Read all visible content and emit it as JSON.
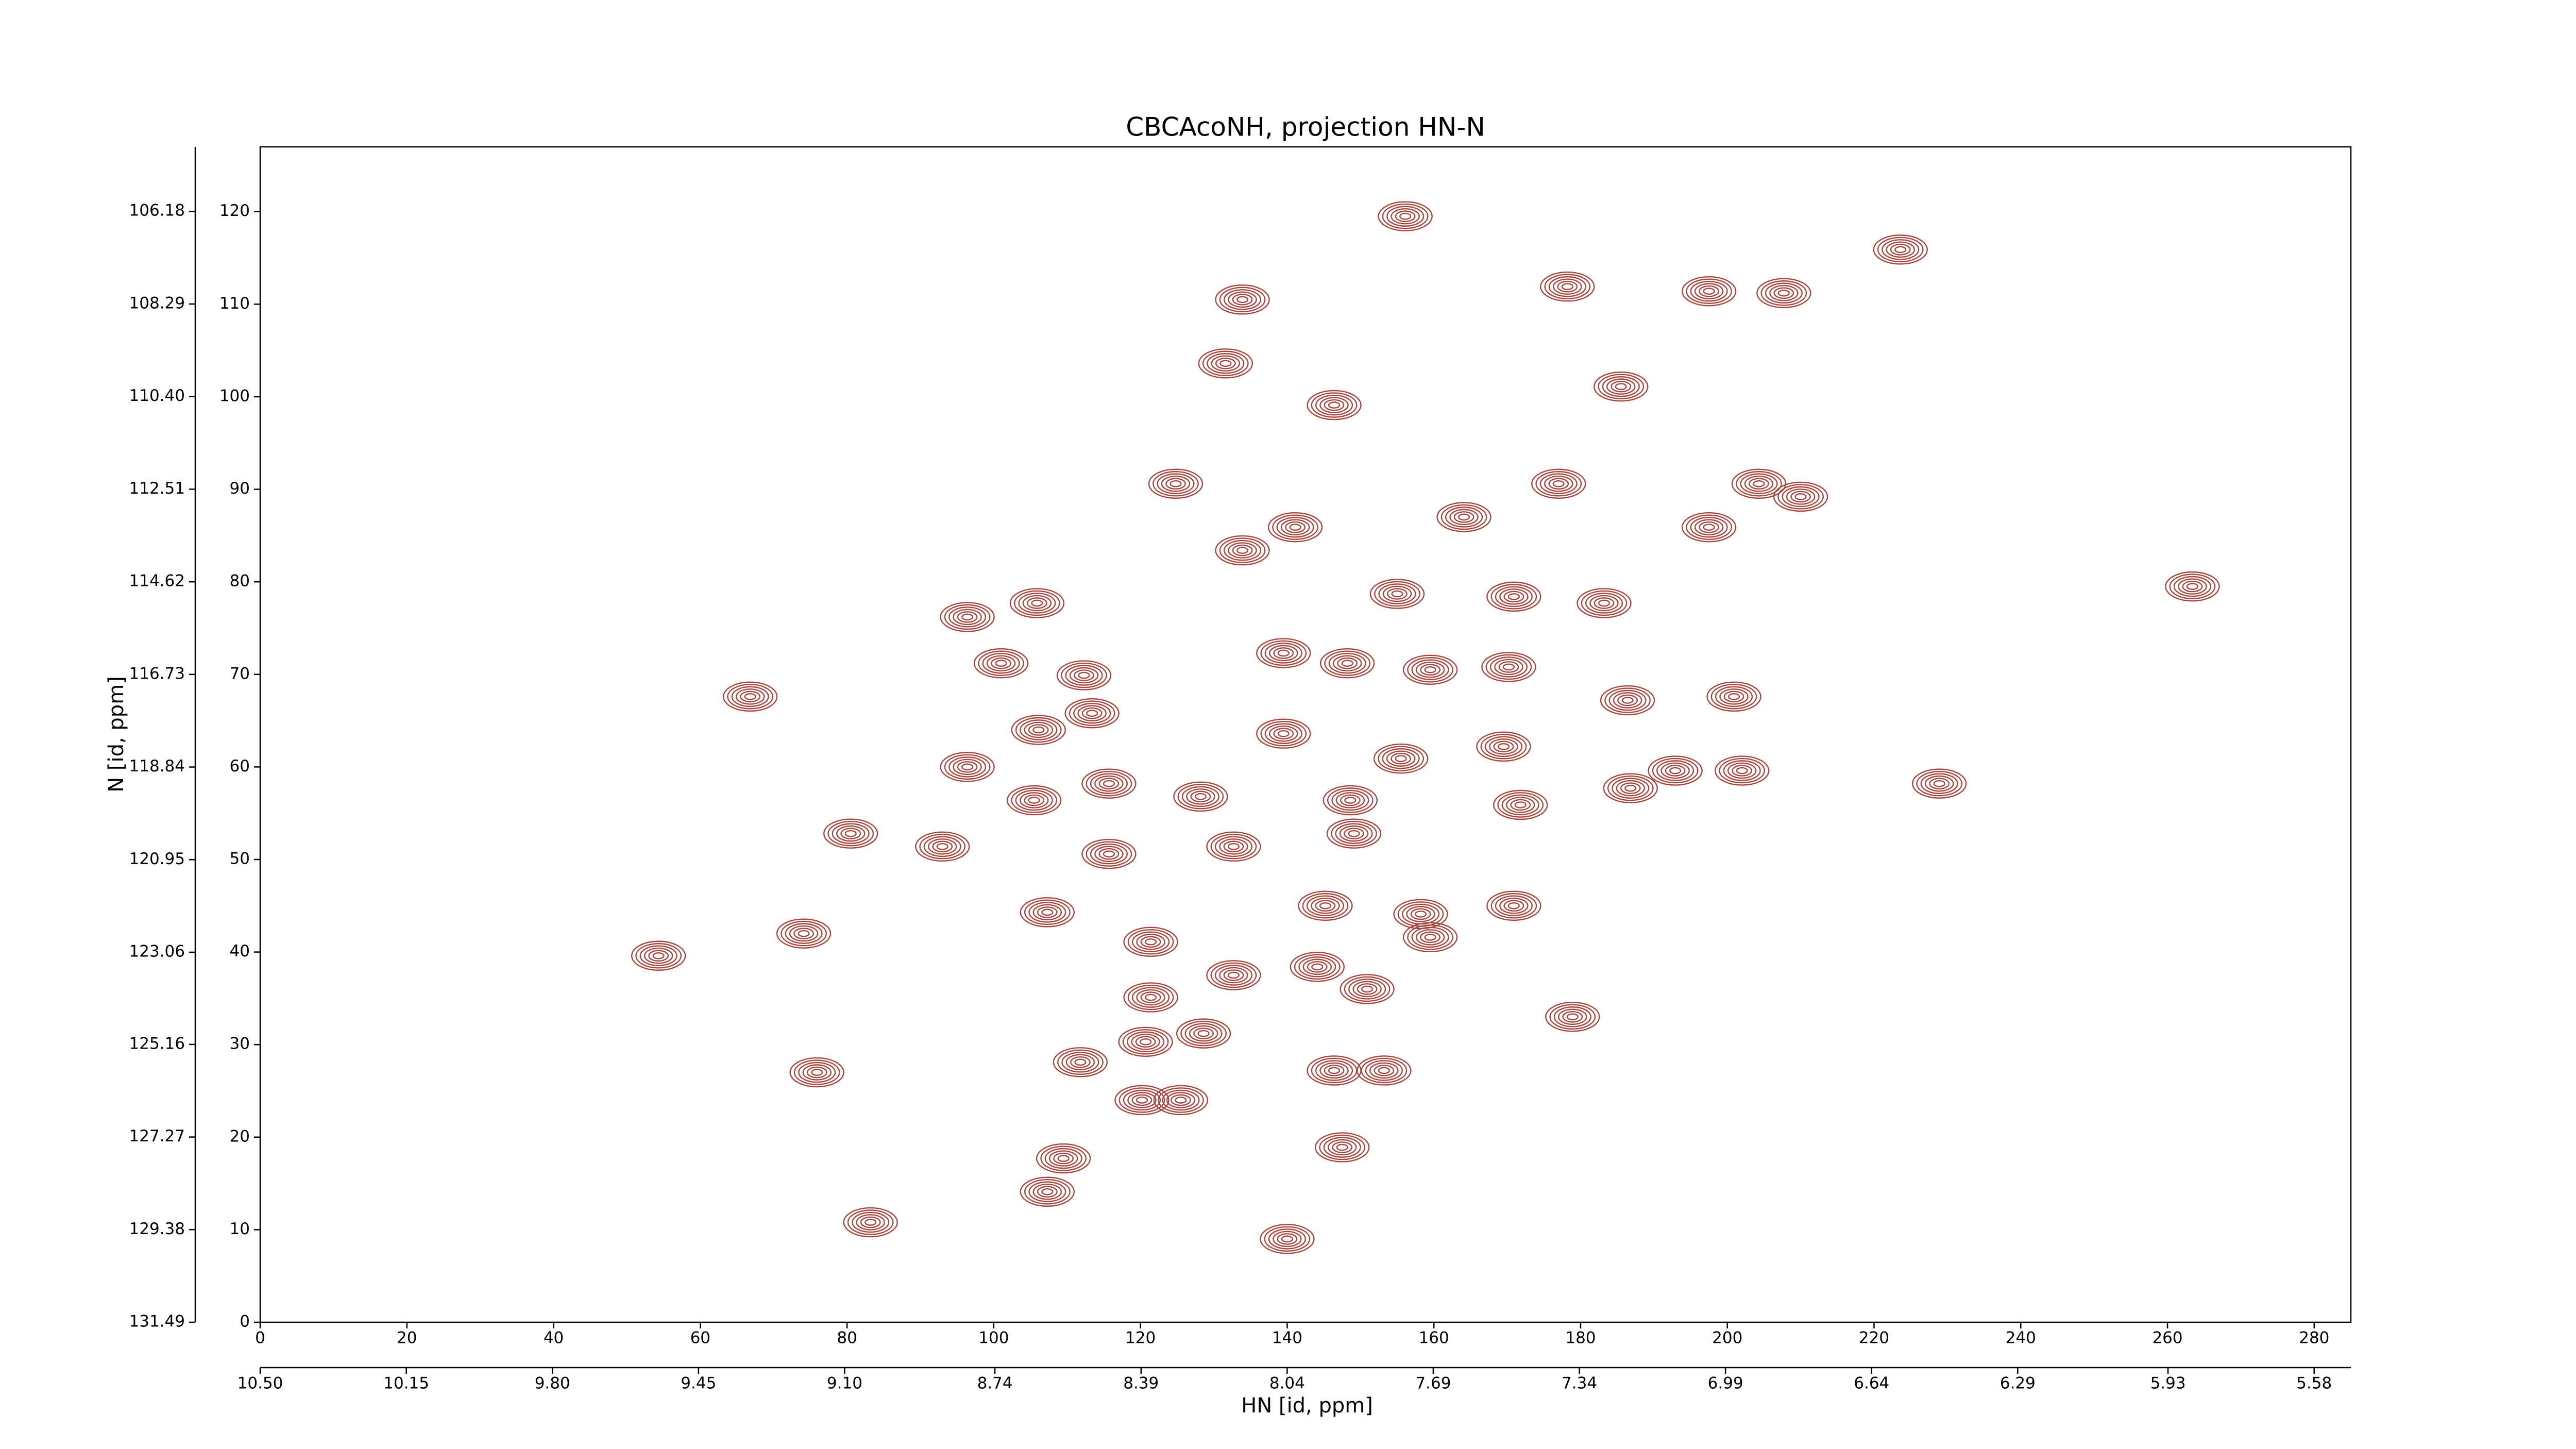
{
  "chart_data": {
    "type": "contour",
    "title": "CBCAcoNH, projection HN-N",
    "x_label": "HN [id, ppm]",
    "y_label": "N [id, ppm]",
    "color": "#a5463f",
    "xlim": [
      0,
      285
    ],
    "xticks": [
      0,
      20,
      40,
      60,
      80,
      100,
      120,
      140,
      160,
      180,
      200,
      220,
      240,
      260,
      280
    ],
    "x2lim": [
      10.5,
      5.492
    ],
    "x2ticks": [
      {
        "value": 10.5,
        "label": "10.50"
      },
      10.15,
      {
        "value": 9.8,
        "label": "9.80"
      },
      9.45,
      {
        "value": 9.1,
        "label": "9.10"
      },
      8.74,
      8.39,
      8.04,
      7.69,
      7.34,
      6.99,
      6.64,
      6.29,
      5.93,
      5.58
    ],
    "ylim": [
      0,
      127
    ],
    "yticks": [
      0,
      10,
      20,
      30,
      40,
      50,
      60,
      70,
      80,
      90,
      100,
      110,
      120
    ],
    "y2lim": [
      131.49,
      104.71
    ],
    "y2ticks": [
      131.49,
      129.38,
      127.27,
      125.16,
      123.06,
      120.95,
      118.84,
      116.73,
      114.62,
      112.51,
      {
        "value": 110.4,
        "label": "110.40"
      },
      108.29,
      106.18
    ],
    "x": [
      156.1,
      223.6,
      133.9,
      178.2,
      197.5,
      207.7,
      146.4,
      185.5,
      131.6,
      124.8,
      177.0,
      164.1,
      141.1,
      133.9,
      197.5,
      204.3,
      210.0,
      96.4,
      105.9,
      155.0,
      170.9,
      183.2,
      263.4,
      66.8,
      101.0,
      112.3,
      139.5,
      148.2,
      159.5,
      170.2,
      186.4,
      200.9,
      96.4,
      106.1,
      113.4,
      155.5,
      169.5,
      139.5,
      192.9,
      202.0,
      186.8,
      228.9,
      105.5,
      115.7,
      128.2,
      148.6,
      171.8,
      80.5,
      93.0,
      115.7,
      132.7,
      149.1,
      107.3,
      145.2,
      158.2,
      170.9,
      159.5,
      74.1,
      121.4,
      54.3,
      132.7,
      144.1,
      150.9,
      121.4,
      128.6,
      120.7,
      111.8,
      75.9,
      153.2,
      146.4,
      120.2,
      125.5,
      147.5,
      109.5,
      107.3,
      83.2,
      140.0,
      178.9
    ],
    "values": [
      119.5,
      115.9,
      110.5,
      111.9,
      111.4,
      111.2,
      99.1,
      101.1,
      103.6,
      90.6,
      90.6,
      87.0,
      85.9,
      83.4,
      85.9,
      90.6,
      89.2,
      76.2,
      77.7,
      78.7,
      78.4,
      77.7,
      79.5,
      67.6,
      71.2,
      69.9,
      72.3,
      71.2,
      70.5,
      70.8,
      67.2,
      67.6,
      60.0,
      64.0,
      65.8,
      60.9,
      62.2,
      63.6,
      59.6,
      59.6,
      57.7,
      58.2,
      56.4,
      58.2,
      56.8,
      56.4,
      55.9,
      52.8,
      51.4,
      50.6,
      51.4,
      52.8,
      44.3,
      45.0,
      44.1,
      45.0,
      41.6,
      42.0,
      41.1,
      39.6,
      37.5,
      38.4,
      36.0,
      35.1,
      31.2,
      30.3,
      28.1,
      27.0,
      27.2,
      27.2,
      24.0,
      24.0,
      18.9,
      17.7,
      14.1,
      10.8,
      9.0,
      33.0
    ]
  }
}
